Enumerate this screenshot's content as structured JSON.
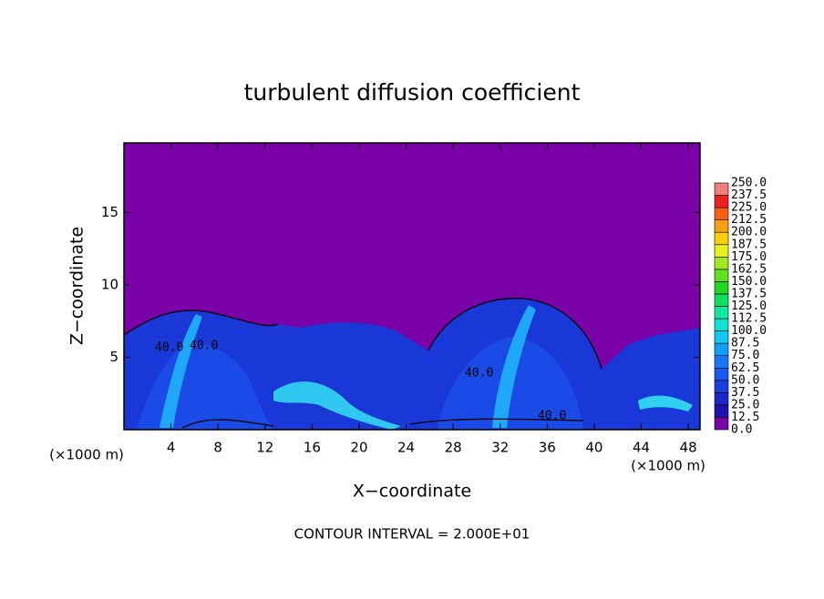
{
  "chart_data": {
    "type": "contour",
    "title": "turbulent diffusion coefficient",
    "x_label": "X−coordinate",
    "y_label": "Z−coordinate",
    "x_unit_left": "(×1000 m)",
    "x_unit_right": "(×1000 m)",
    "footer": "CONTOUR INTERVAL = 2.000E+01",
    "xlim": [
      0,
      49
    ],
    "xticks": [
      4,
      8,
      12,
      16,
      20,
      24,
      28,
      32,
      36,
      40,
      44,
      48
    ],
    "ylim": [
      0,
      19.8
    ],
    "yticks": [
      5,
      10,
      15
    ],
    "contour_labels": [
      "40.0",
      "40.0",
      "40.0",
      "40.0"
    ],
    "colorbar": {
      "ticks": [
        {
          "value": 0,
          "label": "0.0"
        },
        12.5,
        {
          "value": 25,
          "label": "25.0"
        },
        37.5,
        {
          "value": 50,
          "label": "50.0"
        },
        62.5,
        {
          "value": 75,
          "label": "75.0"
        },
        87.5,
        {
          "value": 100,
          "label": "100.0"
        },
        112.5,
        {
          "value": 125,
          "label": "125.0"
        },
        137.5,
        {
          "value": 150,
          "label": "150.0"
        },
        162.5,
        {
          "value": 175,
          "label": "175.0"
        },
        187.5,
        {
          "value": 200,
          "label": "200.0"
        },
        212.5,
        {
          "value": 225,
          "label": "225.0"
        },
        237.5,
        {
          "value": 250,
          "label": "250.0"
        }
      ],
      "colors": [
        "#7a00a8",
        "#2010b0",
        "#1a28c8",
        "#1a40e0",
        "#1a58f0",
        "#1a78f8",
        "#10a0f8",
        "#10c8f0",
        "#10e0d0",
        "#10e8a0",
        "#10e060",
        "#20d820",
        "#60e020",
        "#a0e820",
        "#e8f020",
        "#f8d010",
        "#f8a010",
        "#f86010",
        "#f02020",
        "#f08080"
      ]
    }
  }
}
